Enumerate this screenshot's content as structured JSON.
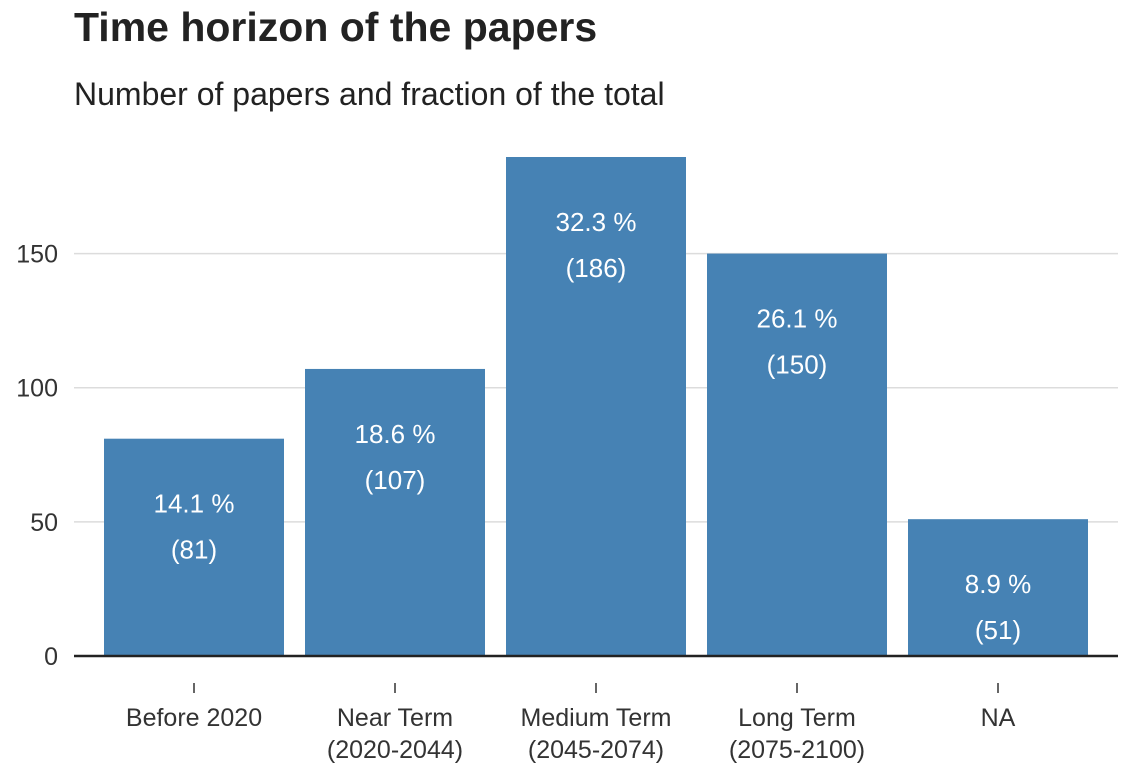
{
  "chart_data": {
    "type": "bar",
    "title": "Time horizon of the papers",
    "subtitle": "Number of papers and fraction of the total",
    "xlabel": "",
    "ylabel": "",
    "categories": [
      [
        "Before 2020"
      ],
      [
        "Near Term",
        "(2020-2044)"
      ],
      [
        "Medium Term",
        "(2045-2074)"
      ],
      [
        "Long Term",
        "(2075-2100)"
      ],
      [
        "NA"
      ]
    ],
    "values": [
      81,
      107,
      186,
      150,
      51
    ],
    "percent_labels": [
      "14.1 %",
      "18.6 %",
      "32.3 %",
      "26.1 %",
      "8.9 %"
    ],
    "count_labels": [
      "(81)",
      "(107)",
      "(186)",
      "(150)",
      "(51)"
    ],
    "ylim": [
      0,
      186
    ],
    "yticks": [
      0,
      50,
      100,
      150
    ],
    "grid": true,
    "bar_color": "#4682b4",
    "grid_color": "#dcdcdc",
    "axis_color": "#222222"
  }
}
